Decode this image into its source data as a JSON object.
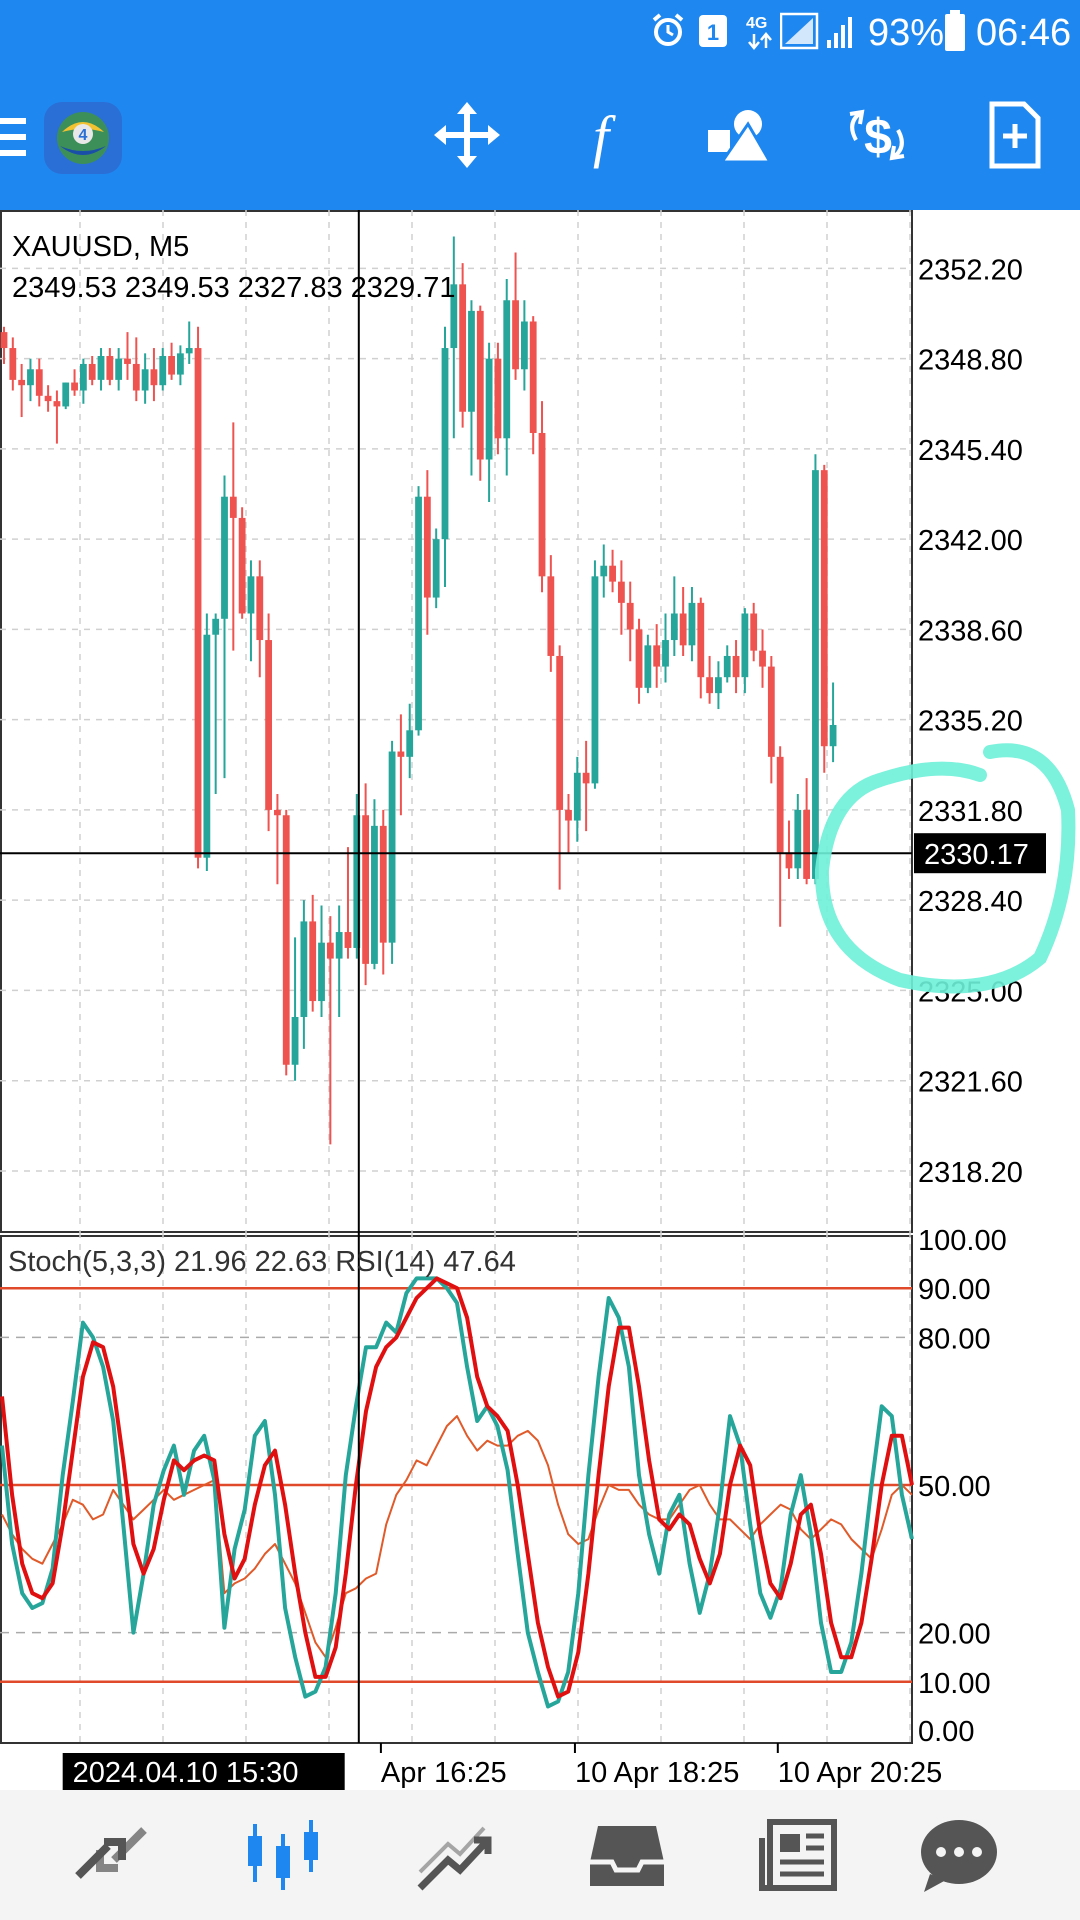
{
  "status_bar": {
    "battery": "93%",
    "time": "06:46",
    "network": "4G",
    "sim_slot": "1",
    "icons": [
      "alarm-icon",
      "sim-icon",
      "network-4g-icon",
      "signal-icon",
      "signal-2-icon",
      "battery-icon"
    ]
  },
  "toolbar": {
    "icons": [
      "menu-icon",
      "app-logo",
      "crosshair-move-icon",
      "indicators-icon",
      "objects-icon",
      "trade-icon",
      "new-order-icon"
    ]
  },
  "colors": {
    "header_blue": "#1f88f0",
    "bull": "#26a69a",
    "bear": "#ef5350",
    "stoch_main": "#26a69a",
    "stoch_signal": "#e01010",
    "rsi": "#e05a2a",
    "level_line": "#e04a2a",
    "highlight": "#6ef0d8"
  },
  "chart_data": [
    {
      "type": "candlestick",
      "symbol_label": "XAUUSD, M5",
      "ohlc_label": "2349.53 2349.53 2327.83 2329.71",
      "ylim": [
        2315.9,
        2354.4
      ],
      "y_ticks": [
        "2352.20",
        "2348.80",
        "2345.40",
        "2342.00",
        "2338.60",
        "2335.20",
        "2331.80",
        "2328.40",
        "2325.00",
        "2321.60",
        "2318.20"
      ],
      "current_price": "2330.17",
      "crosshair_price": 2330.17,
      "crosshair_index": 40,
      "candles": [
        [
          2349.8,
          2350.0,
          2348.6,
          2349.2
        ],
        [
          2349.2,
          2349.6,
          2347.6,
          2348.0
        ],
        [
          2348.0,
          2348.6,
          2346.6,
          2347.8
        ],
        [
          2347.8,
          2348.8,
          2347.2,
          2348.4
        ],
        [
          2348.4,
          2348.8,
          2347.0,
          2347.4
        ],
        [
          2347.4,
          2347.8,
          2346.8,
          2347.2
        ],
        [
          2347.2,
          2347.6,
          2345.6,
          2347.0
        ],
        [
          2347.0,
          2347.9,
          2346.9,
          2347.9
        ],
        [
          2347.9,
          2348.4,
          2347.4,
          2347.6
        ],
        [
          2347.6,
          2348.8,
          2347.1,
          2348.6
        ],
        [
          2348.6,
          2348.9,
          2347.8,
          2348.0
        ],
        [
          2348.0,
          2349.2,
          2347.6,
          2348.9
        ],
        [
          2348.9,
          2349.2,
          2347.8,
          2348.0
        ],
        [
          2348.0,
          2349.2,
          2347.6,
          2348.8
        ],
        [
          2348.8,
          2349.8,
          2348.0,
          2348.6
        ],
        [
          2348.6,
          2349.6,
          2347.2,
          2347.6
        ],
        [
          2347.6,
          2349.0,
          2347.1,
          2348.4
        ],
        [
          2348.4,
          2349.2,
          2347.2,
          2347.8
        ],
        [
          2347.8,
          2349.2,
          2347.6,
          2348.9
        ],
        [
          2348.9,
          2349.4,
          2348.0,
          2348.2
        ],
        [
          2348.2,
          2349.3,
          2347.8,
          2349.0
        ],
        [
          2349.0,
          2350.2,
          2348.6,
          2349.2
        ],
        [
          2349.2,
          2350.0,
          2329.6,
          2330.0
        ],
        [
          2330.0,
          2339.2,
          2329.5,
          2338.4
        ],
        [
          2338.4,
          2339.2,
          2332.4,
          2339.0
        ],
        [
          2339.0,
          2344.4,
          2333.0,
          2343.6
        ],
        [
          2343.6,
          2346.4,
          2337.8,
          2342.8
        ],
        [
          2342.8,
          2343.2,
          2339.0,
          2339.2
        ],
        [
          2339.2,
          2341.2,
          2337.4,
          2340.6
        ],
        [
          2340.6,
          2341.2,
          2336.8,
          2338.2
        ],
        [
          2338.2,
          2339.2,
          2331.0,
          2331.8
        ],
        [
          2331.8,
          2332.4,
          2329.0,
          2331.6
        ],
        [
          2331.6,
          2331.8,
          2321.8,
          2322.2
        ],
        [
          2322.2,
          2327.0,
          2321.6,
          2324.0
        ],
        [
          2324.0,
          2328.4,
          2322.8,
          2327.6
        ],
        [
          2327.6,
          2328.6,
          2324.2,
          2324.6
        ],
        [
          2324.6,
          2328.2,
          2324.0,
          2326.8
        ],
        [
          2326.8,
          2327.8,
          2319.2,
          2326.2
        ],
        [
          2326.2,
          2328.2,
          2324.0,
          2327.2
        ],
        [
          2327.2,
          2330.4,
          2326.2,
          2326.6
        ],
        [
          2326.6,
          2332.4,
          2326.2,
          2331.6
        ],
        [
          2331.6,
          2332.8,
          2325.2,
          2326.0
        ],
        [
          2326.0,
          2332.2,
          2325.8,
          2331.2
        ],
        [
          2331.2,
          2331.8,
          2325.6,
          2326.8
        ],
        [
          2326.8,
          2334.4,
          2326.0,
          2334.0
        ],
        [
          2334.0,
          2335.4,
          2331.6,
          2333.8
        ],
        [
          2333.8,
          2335.8,
          2333.0,
          2334.8
        ],
        [
          2334.8,
          2344.0,
          2334.6,
          2343.6
        ],
        [
          2343.6,
          2344.6,
          2338.4,
          2339.8
        ],
        [
          2339.8,
          2342.4,
          2339.4,
          2342.0
        ],
        [
          2342.0,
          2350.0,
          2340.2,
          2349.2
        ],
        [
          2349.2,
          2353.4,
          2345.8,
          2351.6
        ],
        [
          2351.6,
          2352.4,
          2346.2,
          2346.8
        ],
        [
          2346.8,
          2351.0,
          2344.4,
          2350.6
        ],
        [
          2350.6,
          2350.8,
          2344.2,
          2345.0
        ],
        [
          2345.0,
          2349.4,
          2343.4,
          2348.8
        ],
        [
          2348.8,
          2349.4,
          2345.2,
          2345.8
        ],
        [
          2345.8,
          2351.8,
          2344.4,
          2351.0
        ],
        [
          2351.0,
          2352.8,
          2348.0,
          2348.4
        ],
        [
          2348.4,
          2351.0,
          2347.6,
          2350.2
        ],
        [
          2350.2,
          2350.4,
          2345.2,
          2346.0
        ],
        [
          2346.0,
          2347.2,
          2340.0,
          2340.6
        ],
        [
          2340.6,
          2341.4,
          2337.0,
          2337.6
        ],
        [
          2337.6,
          2338.0,
          2328.8,
          2331.8
        ],
        [
          2331.8,
          2332.4,
          2330.2,
          2331.4
        ],
        [
          2331.4,
          2333.8,
          2330.6,
          2333.2
        ],
        [
          2333.2,
          2334.4,
          2331.0,
          2332.8
        ],
        [
          2332.8,
          2341.2,
          2332.6,
          2340.6
        ],
        [
          2340.6,
          2341.8,
          2339.8,
          2341.0
        ],
        [
          2341.0,
          2341.6,
          2340.0,
          2340.4
        ],
        [
          2340.4,
          2341.2,
          2338.4,
          2339.6
        ],
        [
          2339.6,
          2340.4,
          2337.4,
          2338.6
        ],
        [
          2338.6,
          2339.0,
          2335.8,
          2336.4
        ],
        [
          2336.4,
          2338.4,
          2336.2,
          2338.0
        ],
        [
          2338.0,
          2338.8,
          2336.4,
          2337.2
        ],
        [
          2337.2,
          2339.2,
          2336.6,
          2338.2
        ],
        [
          2338.2,
          2340.6,
          2337.6,
          2339.2
        ],
        [
          2339.2,
          2340.2,
          2337.6,
          2338.0
        ],
        [
          2338.0,
          2340.2,
          2337.4,
          2339.6
        ],
        [
          2339.6,
          2339.8,
          2336.0,
          2336.8
        ],
        [
          2336.8,
          2337.6,
          2335.8,
          2336.2
        ],
        [
          2336.2,
          2337.4,
          2335.6,
          2336.8
        ],
        [
          2336.8,
          2338.0,
          2336.6,
          2337.6
        ],
        [
          2337.6,
          2338.2,
          2336.2,
          2336.8
        ],
        [
          2336.8,
          2339.4,
          2336.2,
          2339.2
        ],
        [
          2339.2,
          2339.6,
          2337.4,
          2337.8
        ],
        [
          2337.8,
          2338.6,
          2336.4,
          2337.2
        ],
        [
          2337.2,
          2337.6,
          2332.8,
          2333.8
        ],
        [
          2333.8,
          2334.2,
          2327.4,
          2330.2
        ],
        [
          2330.2,
          2331.4,
          2329.2,
          2329.6
        ],
        [
          2329.6,
          2332.4,
          2329.2,
          2331.8
        ],
        [
          2331.8,
          2333.0,
          2329.0,
          2329.2
        ],
        [
          2329.2,
          2345.2,
          2329.0,
          2344.6
        ],
        [
          2344.6,
          2344.8,
          2333.2,
          2334.2
        ],
        [
          2334.2,
          2336.6,
          2333.6,
          2335.0
        ]
      ]
    },
    {
      "type": "line",
      "indicator_label": "Stoch(5,3,3) 21.96 22.63 RSI(14) 47.64",
      "ylim": [
        0,
        100
      ],
      "y_ticks": [
        "100.00",
        "90.00",
        "80.00",
        "50.00",
        "20.00",
        "10.00",
        "0.00"
      ],
      "levels": [
        90,
        50,
        10
      ],
      "dashed_levels": [
        80,
        20
      ],
      "x_labels": [
        {
          "label": "2024.04.10 15:30",
          "index": 22.3,
          "highlighted": true
        },
        {
          "label": "Apr 16:25",
          "index": 45
        },
        {
          "label": "10 Apr 18:25",
          "index": 67
        },
        {
          "label": "10 Apr 20:25",
          "index": 90
        }
      ],
      "series": [
        {
          "role": "stoch_main",
          "values": [
            58,
            38,
            28,
            25,
            26,
            33,
            52,
            67,
            83,
            80,
            74,
            63,
            42,
            20,
            32,
            46,
            53,
            58,
            48,
            57,
            60,
            51,
            21,
            37,
            45,
            60,
            63,
            48,
            25,
            15,
            7,
            8,
            13,
            28,
            52,
            66,
            78,
            78,
            83,
            81,
            89,
            92,
            92,
            92,
            90,
            87,
            74,
            63,
            66,
            62,
            53,
            36,
            20,
            12,
            5,
            6,
            12,
            28,
            52,
            72,
            88,
            84,
            74,
            52,
            40,
            32,
            44,
            48,
            34,
            24,
            32,
            46,
            64,
            58,
            42,
            28,
            23,
            29,
            44,
            52,
            40,
            22,
            12,
            12,
            18,
            32,
            50,
            66,
            64,
            48,
            39
          ]
        },
        {
          "role": "stoch_signal",
          "values": [
            68,
            48,
            34,
            28,
            27,
            30,
            42,
            57,
            72,
            79,
            78,
            70,
            55,
            38,
            32,
            37,
            47,
            55,
            53,
            55,
            56,
            55,
            40,
            31,
            35,
            46,
            54,
            57,
            46,
            32,
            20,
            11,
            11,
            17,
            32,
            50,
            65,
            74,
            78,
            80,
            84,
            88,
            90,
            92,
            91,
            90,
            84,
            72,
            66,
            64,
            61,
            50,
            36,
            22,
            13,
            7,
            8,
            16,
            32,
            52,
            70,
            82,
            82,
            70,
            55,
            43,
            41,
            44,
            42,
            35,
            30,
            36,
            50,
            58,
            54,
            40,
            30,
            27,
            34,
            44,
            46,
            36,
            22,
            15,
            15,
            22,
            35,
            50,
            60,
            60,
            50
          ]
        },
        {
          "role": "rsi",
          "values": [
            44,
            40,
            37,
            35,
            34,
            38,
            42,
            47,
            46,
            43,
            44,
            49,
            46,
            43,
            45,
            47,
            49,
            47,
            48,
            49,
            50,
            51,
            28,
            30,
            31,
            33,
            36,
            38,
            34,
            30,
            24,
            18,
            15,
            21,
            28,
            29,
            31,
            32,
            42,
            48,
            51,
            55,
            54,
            58,
            62,
            64,
            60,
            57,
            59,
            58,
            58,
            60,
            61,
            59,
            54,
            46,
            40,
            38,
            39,
            45,
            50,
            49,
            49,
            46,
            44,
            43,
            43,
            46,
            49,
            50,
            46,
            43,
            43,
            41,
            39,
            42,
            44,
            46,
            45,
            41,
            39,
            41,
            43,
            42,
            39,
            37,
            35,
            41,
            48,
            50,
            48
          ]
        }
      ]
    }
  ]
}
